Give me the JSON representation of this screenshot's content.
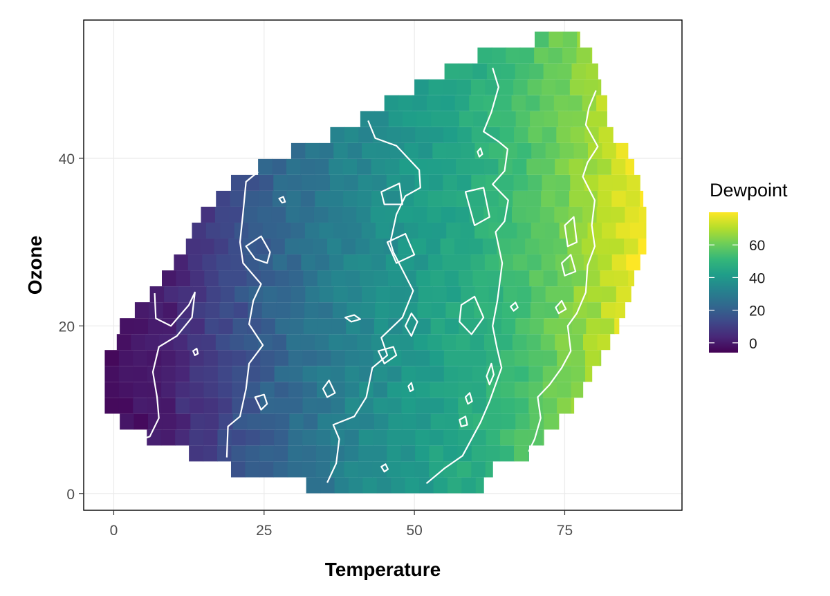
{
  "chart_data": {
    "type": "heatmap",
    "title": "",
    "xlabel": "Temperature",
    "ylabel": "Ozone",
    "xlim": [
      -5,
      94.5
    ],
    "ylim": [
      -2,
      56.5
    ],
    "x_ticks": [
      0,
      25,
      50,
      75
    ],
    "x_tick_labels": [
      "0",
      "25",
      "50",
      "75"
    ],
    "y_ticks": [
      0,
      20,
      40
    ],
    "y_tick_labels": [
      "0",
      "20",
      "40"
    ],
    "grid": true,
    "grid_color": "#ebebeb",
    "panel_border_color": "#000000",
    "fill_variable": "Dewpoint",
    "colormap": "viridis",
    "color_range": [
      -6,
      80
    ],
    "colors": [
      "#440154",
      "#482878",
      "#3e4989",
      "#31688e",
      "#26828e",
      "#1f9e89",
      "#35b779",
      "#6ece58",
      "#b5de2b",
      "#fde725"
    ],
    "contour_color": "#ffffff",
    "grid_spacing": {
      "x": 2.35,
      "y": 1.85
    },
    "legend": {
      "title": "Dewpoint",
      "position": "right",
      "breaks": [
        0,
        20,
        40,
        60
      ],
      "labels": [
        "0",
        "20",
        "40",
        "60"
      ]
    },
    "region_rows": [
      {
        "y": 1.0,
        "x_min": 32.0,
        "x_max": 61.5
      },
      {
        "y": 2.9,
        "x_min": 19.5,
        "x_max": 63.0
      },
      {
        "y": 4.8,
        "x_min": 12.5,
        "x_max": 69.0
      },
      {
        "y": 6.7,
        "x_min": 5.5,
        "x_max": 71.5
      },
      {
        "y": 8.6,
        "x_min": 1.0,
        "x_max": 74.0
      },
      {
        "y": 10.5,
        "x_min": -1.5,
        "x_max": 76.5
      },
      {
        "y": 12.4,
        "x_min": -1.5,
        "x_max": 78.0
      },
      {
        "y": 14.3,
        "x_min": -1.5,
        "x_max": 79.5
      },
      {
        "y": 16.2,
        "x_min": -1.5,
        "x_max": 81.0
      },
      {
        "y": 18.1,
        "x_min": 0.5,
        "x_max": 82.5
      },
      {
        "y": 20.0,
        "x_min": 1.0,
        "x_max": 84.0
      },
      {
        "y": 21.9,
        "x_min": 3.5,
        "x_max": 85.0
      },
      {
        "y": 23.8,
        "x_min": 6.0,
        "x_max": 86.0
      },
      {
        "y": 25.7,
        "x_min": 8.0,
        "x_max": 86.5
      },
      {
        "y": 27.6,
        "x_min": 10.0,
        "x_max": 87.5
      },
      {
        "y": 29.5,
        "x_min": 12.0,
        "x_max": 88.5
      },
      {
        "y": 31.4,
        "x_min": 13.0,
        "x_max": 88.5
      },
      {
        "y": 33.3,
        "x_min": 14.5,
        "x_max": 88.5
      },
      {
        "y": 35.2,
        "x_min": 17.0,
        "x_max": 88.0
      },
      {
        "y": 37.1,
        "x_min": 19.5,
        "x_max": 87.5
      },
      {
        "y": 39.0,
        "x_min": 24.0,
        "x_max": 86.5
      },
      {
        "y": 40.9,
        "x_min": 29.5,
        "x_max": 85.5
      },
      {
        "y": 42.8,
        "x_min": 36.0,
        "x_max": 83.0
      },
      {
        "y": 44.7,
        "x_min": 41.0,
        "x_max": 82.0
      },
      {
        "y": 46.6,
        "x_min": 45.0,
        "x_max": 82.0
      },
      {
        "y": 48.5,
        "x_min": 50.0,
        "x_max": 81.0
      },
      {
        "y": 50.4,
        "x_min": 55.0,
        "x_max": 80.5
      },
      {
        "y": 52.3,
        "x_min": 60.5,
        "x_max": 79.5
      },
      {
        "y": 54.2,
        "x_min": 70.0,
        "x_max": 77.5
      }
    ],
    "dewpoint_model": {
      "x_points": [
        -2,
        10,
        25,
        40,
        50,
        60,
        70,
        80,
        88
      ],
      "dewpoint_values": [
        -6,
        3,
        20,
        33,
        40,
        47,
        56,
        68,
        80
      ]
    },
    "contours": [
      {
        "level": 0,
        "points": [
          [
            6.8,
            23.9
          ],
          [
            7.0,
            20.9
          ],
          [
            9.5,
            20.0
          ],
          [
            12.5,
            22.5
          ],
          [
            13.5,
            24.0
          ],
          [
            13.0,
            21.0
          ],
          [
            10.5,
            18.8
          ],
          [
            7.5,
            17.5
          ],
          [
            6.5,
            14.5
          ],
          [
            7.2,
            11.5
          ],
          [
            7.5,
            9.0
          ],
          [
            6.0,
            6.8
          ],
          [
            5.2,
            6.6
          ]
        ]
      },
      {
        "level": 10,
        "points": [
          [
            24.0,
            38.4
          ],
          [
            22.0,
            37.2
          ],
          [
            21.5,
            33.5
          ],
          [
            21.0,
            30.0
          ],
          [
            21.5,
            27.5
          ],
          [
            24.5,
            25.0
          ],
          [
            23.2,
            23.0
          ],
          [
            22.5,
            20.2
          ],
          [
            24.8,
            17.7
          ],
          [
            22.5,
            15.5
          ],
          [
            22.0,
            12.5
          ],
          [
            21.0,
            9.2
          ],
          [
            19.0,
            8.0
          ],
          [
            18.8,
            4.3
          ]
        ]
      },
      {
        "level": 20,
        "points": [
          [
            42.3,
            44.5
          ],
          [
            43.5,
            42.4
          ],
          [
            47.0,
            41.5
          ],
          [
            50.8,
            38.6
          ],
          [
            51.0,
            36.5
          ],
          [
            48.5,
            35.5
          ],
          [
            47.0,
            33.3
          ],
          [
            46.0,
            30.0
          ],
          [
            46.5,
            28.8
          ],
          [
            48.5,
            26.0
          ],
          [
            49.8,
            24.2
          ],
          [
            48.0,
            21.0
          ],
          [
            44.5,
            18.6
          ],
          [
            45.5,
            16.5
          ],
          [
            43.0,
            15.0
          ],
          [
            42.0,
            11.5
          ],
          [
            40.0,
            9.2
          ],
          [
            36.5,
            8.2
          ],
          [
            37.5,
            6.5
          ],
          [
            37.0,
            3.6
          ],
          [
            35.5,
            1.3
          ]
        ]
      },
      {
        "level": 30,
        "points": [
          [
            63.0,
            50.8
          ],
          [
            64.0,
            48.5
          ],
          [
            62.8,
            45.5
          ],
          [
            61.5,
            43.2
          ],
          [
            64.0,
            42.0
          ],
          [
            65.5,
            41.1
          ],
          [
            65.0,
            38.5
          ],
          [
            63.0,
            36.9
          ],
          [
            65.6,
            35.0
          ],
          [
            65.0,
            32.5
          ],
          [
            63.5,
            31.2
          ],
          [
            64.6,
            27.5
          ],
          [
            63.8,
            23.0
          ],
          [
            63.0,
            20.0
          ],
          [
            63.7,
            17.5
          ],
          [
            64.5,
            15.0
          ],
          [
            62.5,
            11.0
          ],
          [
            61.0,
            8.5
          ],
          [
            58.0,
            4.5
          ],
          [
            55.0,
            3.0
          ],
          [
            52.0,
            1.2
          ]
        ]
      },
      {
        "level": 40,
        "points": [
          [
            80.2,
            48.1
          ],
          [
            79.0,
            46.0
          ],
          [
            78.5,
            44.0
          ],
          [
            80.5,
            41.4
          ],
          [
            78.8,
            39.5
          ],
          [
            78.0,
            37.8
          ],
          [
            80.0,
            35.0
          ],
          [
            79.5,
            32.0
          ],
          [
            80.0,
            29.5
          ],
          [
            78.8,
            27.2
          ],
          [
            78.5,
            24.0
          ],
          [
            77.0,
            21.5
          ],
          [
            75.5,
            20.0
          ],
          [
            76.0,
            17.0
          ],
          [
            74.5,
            15.0
          ],
          [
            72.5,
            13.0
          ],
          [
            70.5,
            11.5
          ],
          [
            71.0,
            9.0
          ],
          [
            70.0,
            6.5
          ],
          [
            69.0,
            5.0
          ]
        ]
      },
      {
        "level": 10,
        "closed": true,
        "points": [
          [
            22.0,
            29.5
          ],
          [
            24.5,
            30.7
          ],
          [
            26.0,
            28.8
          ],
          [
            25.5,
            27.5
          ],
          [
            23.5,
            28.0
          ]
        ]
      },
      {
        "level": 20,
        "closed": true,
        "points": [
          [
            44.5,
            36.0
          ],
          [
            47.5,
            37.0
          ],
          [
            48.0,
            34.5
          ],
          [
            45.0,
            34.5
          ]
        ]
      },
      {
        "level": 20,
        "closed": true,
        "points": [
          [
            45.5,
            30.0
          ],
          [
            48.5,
            31.0
          ],
          [
            50.0,
            28.5
          ],
          [
            47.0,
            27.5
          ]
        ]
      },
      {
        "level": 30,
        "closed": true,
        "points": [
          [
            58.5,
            36.0
          ],
          [
            61.5,
            36.5
          ],
          [
            62.5,
            33.0
          ],
          [
            60.0,
            32.0
          ]
        ]
      },
      {
        "level": 30,
        "closed": true,
        "points": [
          [
            57.8,
            22.5
          ],
          [
            60.0,
            23.5
          ],
          [
            61.5,
            21.0
          ],
          [
            59.5,
            19.0
          ],
          [
            57.5,
            20.5
          ]
        ]
      },
      {
        "level": 40,
        "closed": true,
        "points": [
          [
            75.0,
            32.0
          ],
          [
            76.5,
            33.0
          ],
          [
            77.0,
            30.0
          ],
          [
            75.5,
            29.5
          ]
        ]
      },
      {
        "level": 40,
        "closed": true,
        "points": [
          [
            74.5,
            27.5
          ],
          [
            76.0,
            28.5
          ],
          [
            76.8,
            26.5
          ],
          [
            75.0,
            26.0
          ]
        ]
      },
      {
        "level": 30,
        "closed": true,
        "points": [
          [
            38.5,
            21.0
          ],
          [
            40.0,
            21.3
          ],
          [
            41.0,
            20.8
          ],
          [
            39.5,
            20.5
          ]
        ]
      },
      {
        "level": 30,
        "closed": true,
        "points": [
          [
            44.0,
            17.0
          ],
          [
            46.5,
            17.5
          ],
          [
            47.0,
            16.5
          ],
          [
            45.0,
            15.5
          ]
        ]
      },
      {
        "level": 30,
        "closed": true,
        "points": [
          [
            48.5,
            20.0
          ],
          [
            49.5,
            21.5
          ],
          [
            50.5,
            20.5
          ],
          [
            49.5,
            18.8
          ]
        ]
      },
      {
        "level": 30,
        "closed": true,
        "points": [
          [
            34.8,
            12.5
          ],
          [
            35.8,
            13.5
          ],
          [
            36.8,
            12.0
          ],
          [
            35.5,
            11.5
          ]
        ]
      },
      {
        "level": 10,
        "closed": true,
        "points": [
          [
            23.5,
            11.5
          ],
          [
            25.0,
            11.8
          ],
          [
            25.5,
            10.7
          ],
          [
            24.5,
            10.0
          ]
        ]
      },
      {
        "level": 30,
        "closed": true,
        "points": [
          [
            62.0,
            14.0
          ],
          [
            62.8,
            15.5
          ],
          [
            63.2,
            14.2
          ],
          [
            62.5,
            13.0
          ]
        ]
      },
      {
        "level": 40,
        "closed": true,
        "points": [
          [
            73.5,
            22.2
          ],
          [
            74.5,
            23.0
          ],
          [
            75.2,
            22.0
          ],
          [
            74.0,
            21.5
          ]
        ]
      },
      {
        "level": 30,
        "closed": true,
        "points": [
          [
            66.0,
            22.3
          ],
          [
            66.8,
            22.8
          ],
          [
            67.2,
            22.2
          ],
          [
            66.5,
            21.8
          ]
        ]
      },
      {
        "level": 0,
        "closed": true,
        "points": [
          [
            13.2,
            17.0
          ],
          [
            13.8,
            17.3
          ],
          [
            14.0,
            16.7
          ],
          [
            13.5,
            16.5
          ]
        ]
      },
      {
        "level": 10,
        "closed": true,
        "points": [
          [
            27.5,
            35.2
          ],
          [
            28.2,
            35.4
          ],
          [
            28.5,
            34.8
          ],
          [
            28.0,
            34.7
          ]
        ]
      },
      {
        "level": 40,
        "closed": true,
        "points": [
          [
            60.5,
            40.8
          ],
          [
            61.0,
            41.2
          ],
          [
            61.3,
            40.5
          ],
          [
            60.8,
            40.2
          ]
        ]
      },
      {
        "level": 20,
        "closed": true,
        "points": [
          [
            44.5,
            3.2
          ],
          [
            45.2,
            3.5
          ],
          [
            45.6,
            2.9
          ],
          [
            45.0,
            2.6
          ]
        ]
      },
      {
        "level": 30,
        "closed": true,
        "points": [
          [
            57.5,
            8.8
          ],
          [
            58.5,
            9.2
          ],
          [
            58.8,
            8.2
          ],
          [
            57.8,
            8.0
          ]
        ]
      },
      {
        "level": 30,
        "closed": true,
        "points": [
          [
            58.5,
            11.5
          ],
          [
            59.2,
            12.0
          ],
          [
            59.6,
            11.0
          ],
          [
            58.9,
            10.7
          ]
        ]
      },
      {
        "level": 30,
        "closed": true,
        "points": [
          [
            49.0,
            12.8
          ],
          [
            49.5,
            13.2
          ],
          [
            49.8,
            12.4
          ],
          [
            49.3,
            12.2
          ]
        ]
      }
    ]
  }
}
